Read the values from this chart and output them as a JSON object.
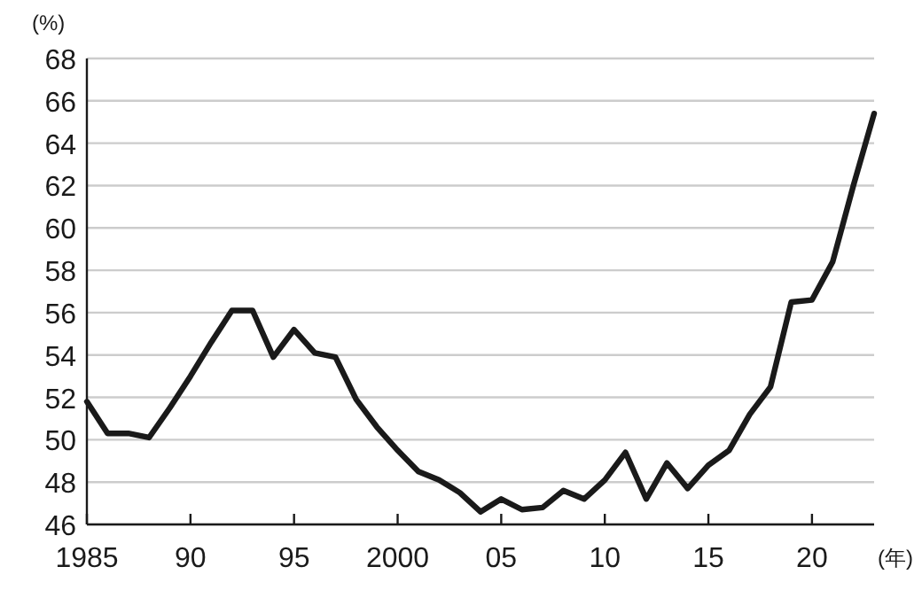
{
  "chart_data": {
    "type": "line",
    "ylabel": "(%)",
    "xlabel": "(年)",
    "x": [
      1985,
      1986,
      1987,
      1988,
      1989,
      1990,
      1991,
      1992,
      1993,
      1994,
      1995,
      1996,
      1997,
      1998,
      1999,
      2000,
      2001,
      2002,
      2003,
      2004,
      2005,
      2006,
      2007,
      2008,
      2009,
      2010,
      2011,
      2012,
      2013,
      2014,
      2015,
      2016,
      2017,
      2018,
      2019,
      2020,
      2021,
      2022,
      2023
    ],
    "series": [
      {
        "color": "#1a1a1a",
        "values": [
          51.8,
          50.3,
          50.3,
          50.1,
          51.5,
          53.0,
          54.6,
          56.1,
          56.1,
          53.9,
          55.2,
          54.1,
          53.9,
          51.9,
          50.6,
          49.5,
          48.5,
          48.1,
          47.5,
          46.6,
          47.2,
          46.7,
          46.8,
          47.6,
          47.2,
          48.1,
          49.4,
          47.2,
          48.9,
          47.7,
          48.8,
          49.5,
          51.2,
          52.5,
          56.5,
          56.6,
          58.4,
          62.0,
          65.4
        ]
      }
    ],
    "xlim": [
      1985,
      2023
    ],
    "xticks": [
      1985,
      {
        "value": 1990,
        "label": "90"
      },
      {
        "value": 1995,
        "label": "95"
      },
      2000,
      {
        "value": 2005,
        "label": "05"
      },
      {
        "value": 2010,
        "label": "10"
      },
      {
        "value": 2015,
        "label": "15"
      },
      {
        "value": 2020,
        "label": "20"
      }
    ],
    "ylim": [
      46,
      68
    ],
    "yticks": [
      46,
      48,
      50,
      52,
      54,
      56,
      58,
      60,
      62,
      64,
      66,
      68
    ],
    "grid": "y",
    "marker": "none",
    "line_style": "solid"
  }
}
